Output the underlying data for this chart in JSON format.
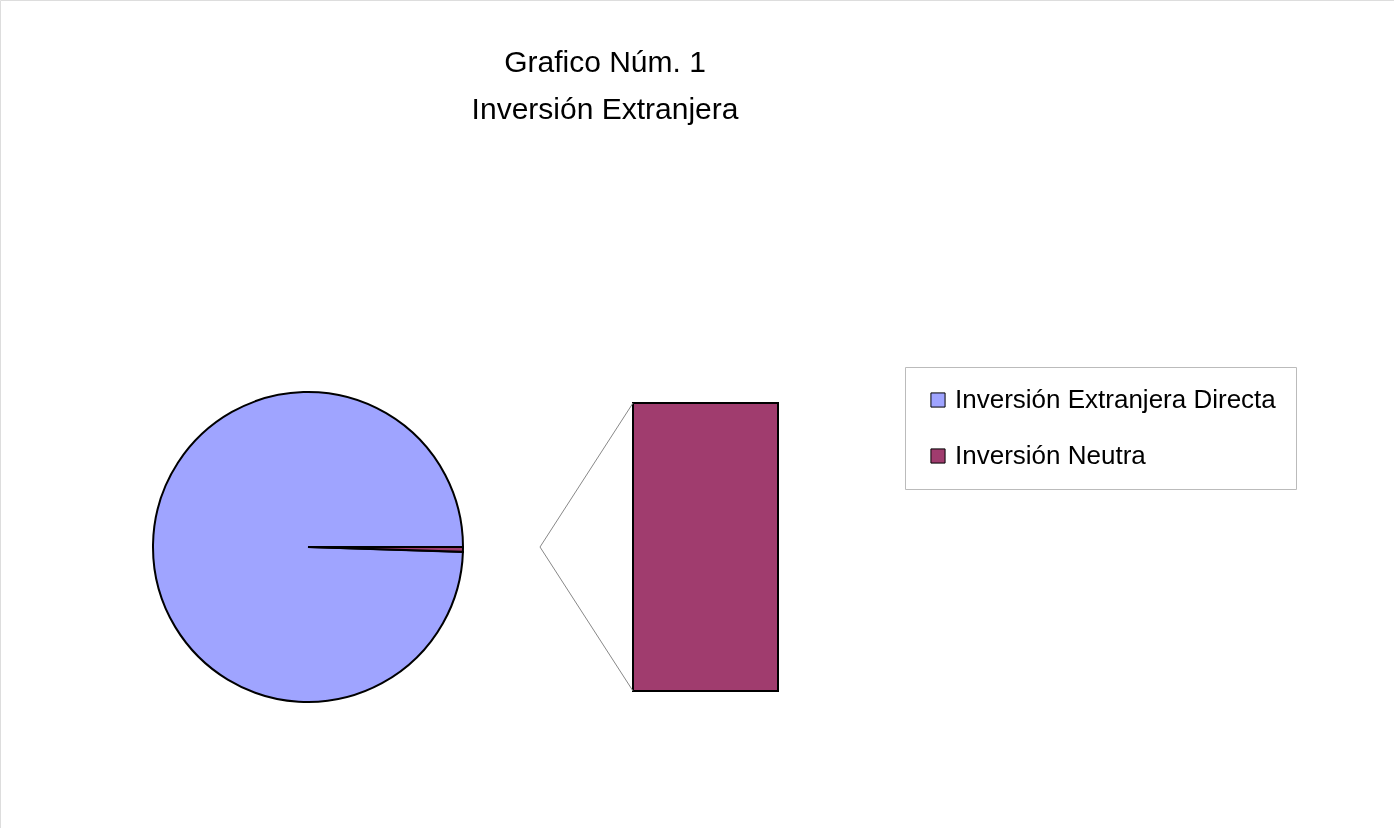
{
  "chart_data": {
    "type": "pie",
    "title": "Grafico Núm. 1",
    "subtitle": "Inversión Extranjera",
    "categories": [
      "Inversión Extranjera Directa",
      "Inversión Neutra"
    ],
    "values": [
      99.5,
      0.5
    ],
    "colors": [
      "#9fa4ff",
      "#a03c6e"
    ],
    "legend": "right"
  }
}
